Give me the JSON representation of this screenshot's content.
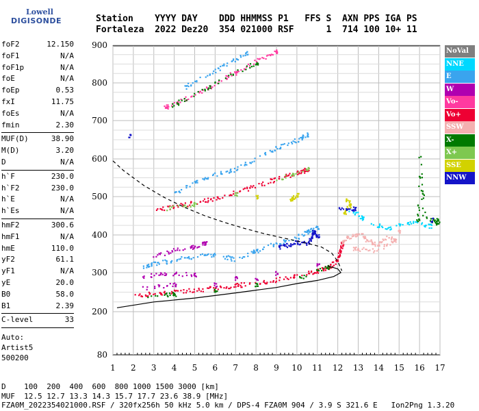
{
  "logo": {
    "line1": "Lowell",
    "line2": "DIGISONDE"
  },
  "header": {
    "line1": "Station    YYYY DAY    DDD HHMMSS P1   FFS S  AXN PPS IGA PS",
    "line2": "Fortaleza  2022 Dez20  354 021000 RSF      1  714 100 10+ 11"
  },
  "params_groups": [
    [
      {
        "label": "foF2",
        "value": "12.150"
      },
      {
        "label": "foF1",
        "value": "N/A"
      },
      {
        "label": "foF1p",
        "value": "N/A"
      },
      {
        "label": "foE",
        "value": "N/A"
      },
      {
        "label": "foEp",
        "value": "0.53"
      },
      {
        "label": "fxI",
        "value": "11.75"
      },
      {
        "label": "foEs",
        "value": "N/A"
      },
      {
        "label": "fmin",
        "value": "2.30"
      }
    ],
    [
      {
        "label": "MUF(D)",
        "value": "38.90"
      },
      {
        "label": "M(D)",
        "value": "3.20"
      },
      {
        "label": "D",
        "value": "N/A"
      }
    ],
    [
      {
        "label": "h`F",
        "value": "230.0"
      },
      {
        "label": "h`F2",
        "value": "230.0"
      },
      {
        "label": "h`E",
        "value": "N/A"
      },
      {
        "label": "h`Es",
        "value": "N/A"
      }
    ],
    [
      {
        "label": "hmF2",
        "value": "300.6"
      },
      {
        "label": "hmF1",
        "value": "N/A"
      },
      {
        "label": "hmE",
        "value": "110.0"
      },
      {
        "label": "yF2",
        "value": "61.1"
      },
      {
        "label": "yF1",
        "value": "N/A"
      },
      {
        "label": "yE",
        "value": "20.0"
      },
      {
        "label": "B0",
        "value": "58.0"
      },
      {
        "label": "B1",
        "value": "2.39"
      }
    ],
    [
      {
        "label": "C-level",
        "value": "33"
      }
    ]
  ],
  "auto": {
    "line1": "Auto:",
    "line2": "Artist5",
    "line3": "500200"
  },
  "legend": [
    {
      "label": "NoVal",
      "color": "#7f7f7f"
    },
    {
      "label": "NNE",
      "color": "#00d8ff"
    },
    {
      "label": "E",
      "color": "#3aa4ee"
    },
    {
      "label": "W",
      "color": "#b000b0"
    },
    {
      "label": "Vo-",
      "color": "#ff3aa0"
    },
    {
      "label": "Vo+",
      "color": "#ee0033"
    },
    {
      "label": "SSW",
      "color": "#f4b0b0"
    },
    {
      "label": "X-",
      "color": "#007a00"
    },
    {
      "label": "X+",
      "color": "#7ec850"
    },
    {
      "label": "SSE",
      "color": "#d2d200"
    },
    {
      "label": "NNW",
      "color": "#1414c8"
    }
  ],
  "footer": {
    "line1": "D    100  200  400  600  800 1000 1500 3000 [km]",
    "line2": "MUF  12.5 12.7 13.3 14.3 15.7 17.7 23.6 38.9 [MHz]",
    "line3": "FZA0M_2022354021000.RSF / 320fx256h 50 kHz 5.0 km / DPS-4 FZA0M 904 / 3.9 S 321.6 E   Ion2Png 1.3.20"
  },
  "chart_data": {
    "type": "scatter",
    "x_ticks": [
      "1",
      "2",
      "3",
      "4",
      "5",
      "6",
      "7",
      "8",
      "9",
      "10",
      "11",
      "12",
      "13",
      "14",
      "15",
      "16",
      "17"
    ],
    "y_ticks": [
      "80",
      "200",
      "300",
      "400",
      "500",
      "600",
      "700",
      "800",
      "900"
    ],
    "xlim": [
      1,
      17
    ],
    "ylim": [
      80,
      900
    ],
    "grid": true,
    "profile_curve": [
      [
        1.2,
        210
      ],
      [
        3,
        225
      ],
      [
        5,
        235
      ],
      [
        7,
        248
      ],
      [
        8,
        255
      ],
      [
        9,
        262
      ],
      [
        10,
        272
      ],
      [
        11,
        280
      ],
      [
        11.8,
        290
      ],
      [
        12.15,
        300
      ],
      [
        12.0,
        310
      ],
      [
        11.5,
        318
      ]
    ],
    "x_trace_curve": [
      [
        1.0,
        595
      ],
      [
        1.5,
        570
      ],
      [
        2.5,
        530
      ],
      [
        3.5,
        498
      ],
      [
        4.5,
        472
      ],
      [
        5.5,
        450
      ],
      [
        6.5,
        432
      ],
      [
        7.5,
        416
      ],
      [
        8.5,
        402
      ],
      [
        9.5,
        390
      ],
      [
        10.5,
        378
      ],
      [
        11.2,
        368
      ],
      [
        11.7,
        352
      ],
      [
        12.0,
        330
      ],
      [
        12.2,
        305
      ]
    ],
    "traces": [
      {
        "name": "Vo+",
        "color": "#ee0033",
        "points": [
          [
            2.0,
            243
          ],
          [
            3.0,
            248
          ],
          [
            4.0,
            252
          ],
          [
            5.0,
            257
          ],
          [
            6.0,
            262
          ],
          [
            7.0,
            268
          ],
          [
            8.0,
            275
          ],
          [
            9.0,
            283
          ],
          [
            10.0,
            293
          ],
          [
            11.0,
            305
          ],
          [
            11.5,
            315
          ],
          [
            11.9,
            330
          ],
          [
            12.1,
            355
          ],
          [
            12.2,
            380
          ]
        ]
      },
      {
        "name": "X-",
        "color": "#007a00",
        "points": [
          [
            2.6,
            240
          ],
          [
            4.0,
            246
          ],
          [
            6.0,
            256
          ],
          [
            8.0,
            270
          ],
          [
            10.0,
            288
          ],
          [
            11.5,
            315
          ]
        ]
      },
      {
        "name": "W",
        "color": "#b000b0",
        "points": [
          [
            2.4,
            290
          ],
          [
            3.5,
            300
          ],
          [
            5.0,
            295
          ],
          [
            7.0,
            288
          ],
          [
            9.0,
            300
          ],
          [
            11.0,
            320
          ],
          [
            2.4,
            260
          ],
          [
            4.0,
            270
          ],
          [
            6.0,
            270
          ],
          [
            8.0,
            285
          ],
          [
            3.0,
            345
          ],
          [
            4.0,
            360
          ],
          [
            5.0,
            370
          ],
          [
            5.5,
            380
          ]
        ]
      },
      {
        "name": "E",
        "color": "#3aa4ee",
        "points": [
          [
            2.4,
            318
          ],
          [
            3.0,
            325
          ],
          [
            4.0,
            335
          ],
          [
            5.0,
            345
          ],
          [
            6.0,
            350
          ],
          [
            7.0,
            335
          ],
          [
            8.0,
            360
          ],
          [
            9.0,
            380
          ],
          [
            10.0,
            395
          ],
          [
            10.5,
            410
          ],
          [
            11.0,
            420
          ]
        ]
      },
      {
        "name": "NNW",
        "color": "#1414c8",
        "points": [
          [
            9.0,
            368
          ],
          [
            9.5,
            375
          ],
          [
            10.0,
            382
          ],
          [
            10.5,
            378
          ],
          [
            10.7,
            395
          ],
          [
            10.8,
            410
          ],
          [
            11.0,
            400
          ]
        ]
      },
      {
        "name": "Vo+",
        "color": "#ee0033",
        "points": [
          [
            3.0,
            467
          ],
          [
            4.0,
            475
          ],
          [
            5.0,
            485
          ],
          [
            6.0,
            497
          ],
          [
            7.0,
            512
          ],
          [
            8.0,
            530
          ],
          [
            9.0,
            548
          ],
          [
            10.0,
            565
          ],
          [
            10.5,
            573
          ]
        ]
      },
      {
        "name": "X+",
        "color": "#7ec850",
        "points": [
          [
            3.5,
            470
          ],
          [
            5.0,
            482
          ],
          [
            7.0,
            508
          ],
          [
            9.0,
            545
          ],
          [
            10.5,
            575
          ]
        ]
      },
      {
        "name": "E",
        "color": "#3aa4ee",
        "points": [
          [
            4.0,
            510
          ],
          [
            5.0,
            540
          ],
          [
            6.0,
            560
          ],
          [
            7.0,
            575
          ],
          [
            8.0,
            605
          ],
          [
            9.0,
            630
          ],
          [
            10.0,
            650
          ],
          [
            10.5,
            665
          ]
        ]
      },
      {
        "name": "Vo-",
        "color": "#ff3aa0",
        "points": [
          [
            3.5,
            735
          ],
          [
            4.0,
            745
          ],
          [
            5.0,
            770
          ],
          [
            6.0,
            800
          ],
          [
            7.0,
            830
          ],
          [
            8.0,
            860
          ],
          [
            9.0,
            885
          ]
        ]
      },
      {
        "name": "X-",
        "color": "#007a00",
        "points": [
          [
            3.8,
            740
          ],
          [
            5.0,
            770
          ],
          [
            6.5,
            815
          ],
          [
            8.0,
            855
          ]
        ]
      },
      {
        "name": "E",
        "color": "#3aa4ee",
        "points": [
          [
            4.5,
            790
          ],
          [
            5.5,
            820
          ],
          [
            6.5,
            850
          ],
          [
            7.5,
            880
          ]
        ]
      },
      {
        "name": "SSW",
        "color": "#f4b0b0",
        "points": [
          [
            12.2,
            380
          ],
          [
            12.5,
            395
          ],
          [
            13.0,
            405
          ],
          [
            13.5,
            385
          ],
          [
            14.0,
            375
          ],
          [
            14.5,
            400
          ],
          [
            14.8,
            385
          ],
          [
            13.8,
            360
          ],
          [
            12.8,
            365
          ],
          [
            15.0,
            410
          ]
        ]
      },
      {
        "name": "NNE",
        "color": "#00d8ff",
        "points": [
          [
            13.5,
            430
          ],
          [
            14.5,
            420
          ],
          [
            15.5,
            435
          ],
          [
            16.5,
            425
          ],
          [
            12.5,
            470
          ],
          [
            13.2,
            445
          ]
        ]
      },
      {
        "name": "SSE",
        "color": "#d2d200",
        "points": [
          [
            12.4,
            495
          ],
          [
            12.6,
            480
          ],
          [
            12.3,
            460
          ],
          [
            9.6,
            490
          ],
          [
            10.0,
            505
          ],
          [
            8.0,
            500
          ]
        ]
      },
      {
        "name": "X-",
        "color": "#007a00",
        "points": [
          [
            16.8,
            440
          ],
          [
            16.9,
            430
          ],
          [
            16.2,
            450
          ],
          [
            16.0,
            610
          ],
          [
            15.9,
            440
          ]
        ]
      },
      {
        "name": "NNW",
        "color": "#1414c8",
        "points": [
          [
            11.8,
            470
          ],
          [
            12.8,
            470
          ],
          [
            16.6,
            440
          ],
          [
            1.8,
            660
          ]
        ]
      }
    ]
  }
}
